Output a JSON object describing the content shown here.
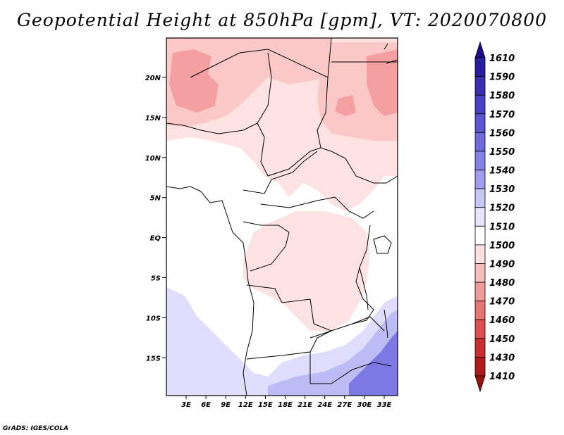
{
  "title": "Geopotential Height at 850hPa [gpm], VT: 2020070800",
  "credit": "GrADS: IGES/COLA",
  "axes": {
    "lat_labels": [
      "20N",
      "15N",
      "10N",
      "5N",
      "EQ",
      "5S",
      "10S",
      "15S"
    ],
    "lon_labels": [
      "3E",
      "6E",
      "9E",
      "12E",
      "15E",
      "18E",
      "21E",
      "24E",
      "27E",
      "30E",
      "33E"
    ]
  },
  "colorbar": {
    "levels": [
      "1610",
      "1590",
      "1580",
      "1570",
      "1560",
      "1550",
      "1540",
      "1530",
      "1520",
      "1510",
      "1500",
      "1490",
      "1480",
      "1470",
      "1460",
      "1450",
      "1430",
      "1410"
    ],
    "colors": [
      "#1e0a8c",
      "#2a1ea0",
      "#3a30b4",
      "#4a42c6",
      "#5a56d4",
      "#6e6ae0",
      "#8482e8",
      "#a09ef0",
      "#c8c8f8",
      "#e6e6fc",
      "#ffffff",
      "#fde0e0",
      "#f9bcbc",
      "#f29a9a",
      "#e87474",
      "#dc5050",
      "#c83030",
      "#b01c1c",
      "#96100c"
    ]
  },
  "map_colors": {
    "frame": "#000000",
    "border": "#000000",
    "pink_light": "#fde2e2",
    "pink_mid": "#fbc8c8",
    "pink_dark": "#f4a0a0",
    "blue_light": "#dedefc",
    "blue_mid": "#bcbcf4",
    "blue_dark": "#7c78e4"
  }
}
